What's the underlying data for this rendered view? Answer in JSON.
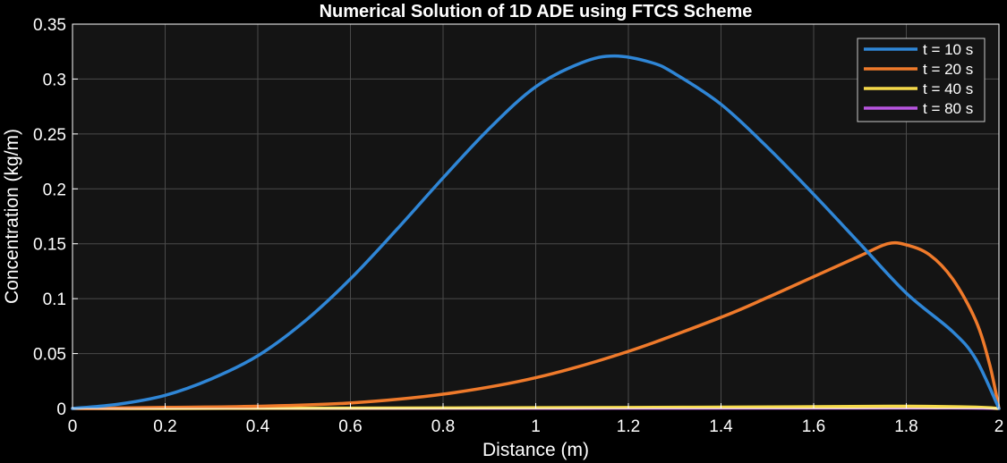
{
  "chart_data": {
    "type": "line",
    "title": "Numerical Solution of 1D ADE using FTCS Scheme",
    "xlabel": "Distance (m)",
    "ylabel": "Concentration (kg/m)",
    "xlim": [
      0,
      2
    ],
    "ylim": [
      0,
      0.35
    ],
    "xticks": [
      0,
      0.2,
      0.4,
      0.6,
      0.8,
      1,
      1.2,
      1.4,
      1.6,
      1.8,
      2
    ],
    "xtick_labels": [
      "0",
      "0.2",
      "0.4",
      "0.6",
      "0.8",
      "1",
      "1.2",
      "1.4",
      "1.6",
      "1.8",
      "2"
    ],
    "yticks": [
      0,
      0.05,
      0.1,
      0.15,
      0.2,
      0.25,
      0.3,
      0.35
    ],
    "ytick_labels": [
      "0",
      "0.05",
      "0.1",
      "0.15",
      "0.2",
      "0.25",
      "0.3",
      "0.35"
    ],
    "grid": true,
    "legend_position": "top-right",
    "colors": {
      "figure_bg": "#000000",
      "axes_bg": "#141414",
      "grid": "#4a4a4a",
      "axis": "#ffffff"
    },
    "series": [
      {
        "name": "t = 10 s",
        "color": "#2f86d6",
        "x": [
          0,
          0.1,
          0.2,
          0.3,
          0.4,
          0.5,
          0.6,
          0.7,
          0.8,
          0.9,
          1.0,
          1.1,
          1.17,
          1.25,
          1.3,
          1.4,
          1.5,
          1.6,
          1.7,
          1.8,
          1.9,
          1.95,
          2.0
        ],
        "y": [
          0,
          0.004,
          0.012,
          0.027,
          0.048,
          0.079,
          0.118,
          0.163,
          0.21,
          0.255,
          0.293,
          0.315,
          0.321,
          0.315,
          0.305,
          0.277,
          0.238,
          0.195,
          0.15,
          0.105,
          0.07,
          0.045,
          0
        ]
      },
      {
        "name": "t = 20 s",
        "color": "#ef7a2b",
        "x": [
          0,
          0.2,
          0.4,
          0.6,
          0.8,
          1.0,
          1.2,
          1.4,
          1.5,
          1.6,
          1.7,
          1.76,
          1.8,
          1.85,
          1.9,
          1.95,
          1.98,
          2.0
        ],
        "y": [
          0,
          0.001,
          0.002,
          0.005,
          0.013,
          0.028,
          0.052,
          0.083,
          0.101,
          0.12,
          0.139,
          0.15,
          0.149,
          0.14,
          0.118,
          0.08,
          0.04,
          0
        ]
      },
      {
        "name": "t = 40 s",
        "color": "#f5d94a",
        "x": [
          0,
          0.4,
          0.8,
          1.2,
          1.6,
          1.8,
          1.95,
          2.0
        ],
        "y": [
          0,
          0.0002,
          0.0005,
          0.0009,
          0.0016,
          0.002,
          0.0012,
          0
        ]
      },
      {
        "name": "t = 80 s",
        "color": "#b855e0",
        "x": [
          0,
          0.5,
          1.0,
          1.5,
          1.9,
          2.0
        ],
        "y": [
          0,
          0.0001,
          0.0002,
          0.0004,
          0.0005,
          0
        ]
      }
    ]
  }
}
